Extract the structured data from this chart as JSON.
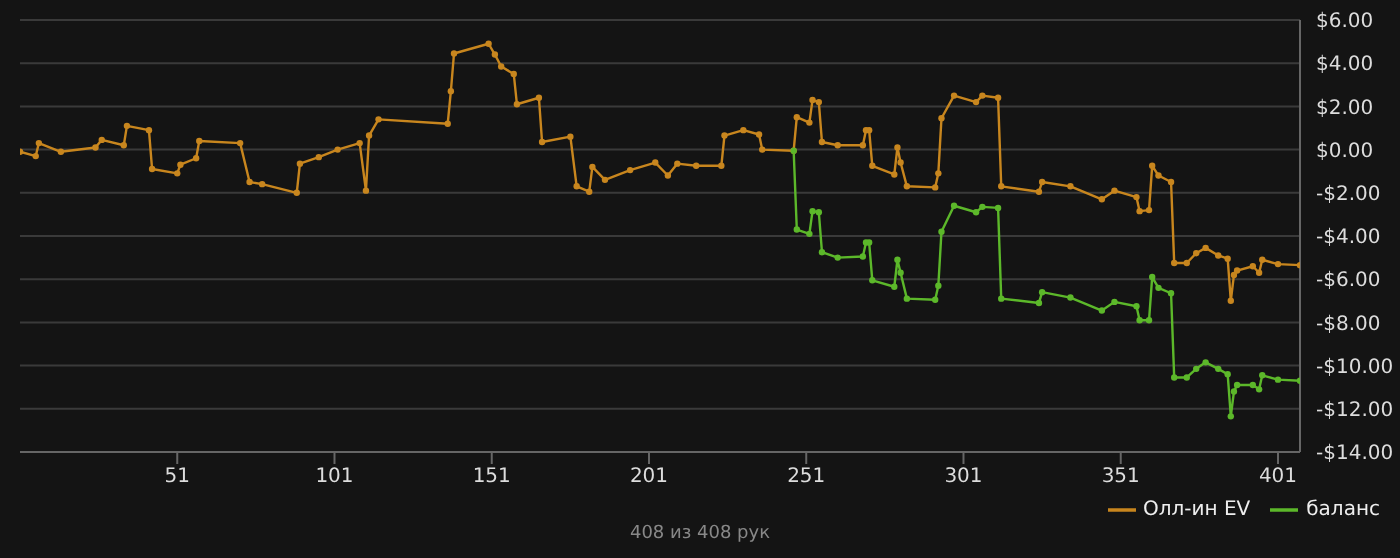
{
  "chart_data": {
    "type": "line",
    "xlim": [
      1,
      408
    ],
    "xticks": [
      51,
      101,
      151,
      201,
      251,
      301,
      351,
      401
    ],
    "ylim": [
      -14,
      6
    ],
    "yticks": [
      {
        "value": 6,
        "label": "$6.00"
      },
      {
        "value": 4,
        "label": "$4.00"
      },
      {
        "value": 2,
        "label": "$2.00"
      },
      {
        "value": 0,
        "label": "$0.00"
      },
      {
        "value": -2,
        "label": "-$2.00"
      },
      {
        "value": -4,
        "label": "-$4.00"
      },
      {
        "value": -6,
        "label": "-$6.00"
      },
      {
        "value": -8,
        "label": "-$8.00"
      },
      {
        "value": -10,
        "label": "-$10.00"
      },
      {
        "value": -12,
        "label": "-$12.00"
      },
      {
        "value": -14,
        "label": "-$14.00"
      }
    ],
    "grid": "y",
    "legend": "bottom right",
    "marker": "circle",
    "line_style": "solid",
    "annotations": [
      "408 из 408 рук"
    ],
    "series": [
      {
        "name": "Олл-ин EV",
        "color": "#c8861e",
        "x": [
          1,
          6,
          7,
          14,
          25,
          27,
          34,
          35,
          42,
          43,
          51,
          52,
          57,
          58,
          71,
          74,
          78,
          89,
          90,
          96,
          102,
          109,
          111,
          112,
          115,
          137,
          138,
          139,
          150,
          152,
          154,
          158,
          159,
          166,
          167,
          176,
          178,
          182,
          183,
          187,
          195,
          203,
          207,
          210,
          216,
          224,
          225,
          231,
          236,
          237,
          247,
          248,
          252,
          253,
          255,
          256,
          261,
          269,
          270,
          271,
          272,
          279,
          280,
          281,
          283,
          292,
          293,
          294,
          298,
          305,
          307,
          312,
          313,
          325,
          326,
          335,
          345,
          349,
          356,
          357,
          360,
          361,
          363,
          367,
          368,
          372,
          375,
          378,
          382,
          385,
          386,
          387,
          388,
          393,
          395,
          396,
          401,
          408
        ],
        "values": [
          -0.1,
          -0.3,
          0.3,
          -0.1,
          0.1,
          0.45,
          0.2,
          1.1,
          0.9,
          -0.9,
          -1.1,
          -0.7,
          -0.4,
          0.4,
          0.3,
          -1.5,
          -1.6,
          -2.0,
          -0.65,
          -0.35,
          0,
          0.3,
          -1.9,
          0.65,
          1.4,
          1.2,
          2.7,
          4.45,
          4.9,
          4.4,
          3.85,
          3.5,
          2.1,
          2.4,
          0.35,
          0.6,
          -1.7,
          -1.95,
          -0.8,
          -1.4,
          -0.95,
          -0.6,
          -1.2,
          -0.65,
          -0.75,
          -0.75,
          0.65,
          0.9,
          0.7,
          0,
          -0.05,
          1.5,
          1.25,
          2.3,
          2.2,
          0.35,
          0.2,
          0.2,
          0.9,
          0.9,
          -0.75,
          -1.15,
          0.1,
          -0.6,
          -1.7,
          -1.75,
          -1.1,
          1.45,
          2.5,
          2.2,
          2.5,
          2.4,
          -1.7,
          -1.95,
          -1.5,
          -1.7,
          -2.3,
          -1.9,
          -2.2,
          -2.85,
          -2.8,
          -0.75,
          -1.2,
          -1.5,
          -5.25,
          -5.25,
          -4.8,
          -4.55,
          -4.9,
          -5.05,
          -7.0,
          -5.8,
          -5.6,
          -5.4,
          -5.7,
          -5.1,
          -5.3,
          -5.35
        ]
      },
      {
        "name": "баланс",
        "color": "#5cb82a",
        "x": [
          247,
          248,
          252,
          253,
          255,
          256,
          261,
          269,
          270,
          271,
          272,
          279,
          280,
          281,
          283,
          292,
          293,
          294,
          298,
          305,
          307,
          312,
          313,
          325,
          326,
          335,
          345,
          349,
          356,
          357,
          360,
          361,
          363,
          367,
          368,
          372,
          375,
          378,
          382,
          385,
          386,
          387,
          388,
          393,
          395,
          396,
          401,
          408
        ],
        "values": [
          -0.05,
          -3.7,
          -3.9,
          -2.85,
          -2.9,
          -4.75,
          -5.0,
          -4.95,
          -4.3,
          -4.3,
          -6.05,
          -6.35,
          -5.1,
          -5.7,
          -6.9,
          -6.95,
          -6.3,
          -3.8,
          -2.6,
          -2.9,
          -2.65,
          -2.7,
          -6.9,
          -7.1,
          -6.6,
          -6.85,
          -7.45,
          -7.05,
          -7.25,
          -7.9,
          -7.9,
          -5.9,
          -6.4,
          -6.65,
          -10.55,
          -10.55,
          -10.15,
          -9.85,
          -10.15,
          -10.4,
          -12.35,
          -11.2,
          -10.9,
          -10.9,
          -11.1,
          -10.45,
          -10.65,
          -10.7
        ]
      }
    ]
  }
}
